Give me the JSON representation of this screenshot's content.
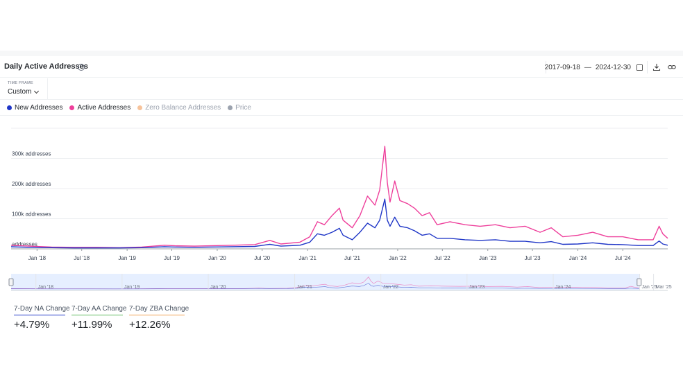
{
  "header": {
    "title": "Daily Active Addresses",
    "date_from": "2017-09-18",
    "date_sep": "—",
    "date_to": "2024-12-30"
  },
  "timeframe": {
    "label": "TIME FRAME",
    "value": "Custom"
  },
  "legend": [
    {
      "label": "New Addresses",
      "color": "#1f36c7",
      "active": true
    },
    {
      "label": "Active Addresses",
      "color": "#ee3f9b",
      "active": true
    },
    {
      "label": "Zero Balance Addresses",
      "color": "#f7c39b",
      "active": false
    },
    {
      "label": "Price",
      "color": "#9ca3af",
      "active": false
    }
  ],
  "chart_data": {
    "type": "line",
    "ylabel_ticks": [
      "addresses",
      "100k addresses",
      "200k addresses",
      "300k addresses"
    ],
    "y_tick_values": [
      0,
      100000,
      200000,
      300000
    ],
    "ylim": [
      0,
      400000
    ],
    "x_ticks": [
      "Jan '18",
      "Jul '18",
      "Jan '19",
      "Jul '19",
      "Jan '20",
      "Jul '20",
      "Jan '21",
      "Jul '21",
      "Jan '22",
      "Jul '22",
      "Jan '23",
      "Jul '23",
      "Jan '24",
      "Jul '24"
    ],
    "x_tick_dates": [
      "2018-01-01",
      "2018-07-01",
      "2019-01-01",
      "2019-07-01",
      "2020-01-01",
      "2020-07-01",
      "2021-01-01",
      "2021-07-01",
      "2022-01-01",
      "2022-07-01",
      "2023-01-01",
      "2023-07-01",
      "2024-01-01",
      "2024-07-01"
    ],
    "xlim": [
      "2017-09-18",
      "2024-12-30"
    ],
    "grid": true,
    "series": [
      {
        "name": "Active Addresses",
        "color": "#ee3f9b",
        "points": [
          [
            "2017-09-18",
            12000
          ],
          [
            "2017-12-01",
            9000
          ],
          [
            "2018-03-01",
            6000
          ],
          [
            "2018-06-01",
            5000
          ],
          [
            "2018-09-01",
            5000
          ],
          [
            "2018-12-01",
            4000
          ],
          [
            "2019-03-01",
            6000
          ],
          [
            "2019-06-01",
            12000
          ],
          [
            "2019-07-15",
            10000
          ],
          [
            "2019-10-01",
            9000
          ],
          [
            "2019-12-01",
            10000
          ],
          [
            "2020-03-01",
            12000
          ],
          [
            "2020-06-01",
            14000
          ],
          [
            "2020-08-01",
            28000
          ],
          [
            "2020-09-15",
            16000
          ],
          [
            "2020-12-01",
            22000
          ],
          [
            "2021-01-10",
            40000
          ],
          [
            "2021-02-10",
            90000
          ],
          [
            "2021-03-10",
            80000
          ],
          [
            "2021-04-10",
            110000
          ],
          [
            "2021-05-10",
            135000
          ],
          [
            "2021-05-25",
            95000
          ],
          [
            "2021-07-01",
            70000
          ],
          [
            "2021-08-01",
            110000
          ],
          [
            "2021-09-01",
            175000
          ],
          [
            "2021-10-01",
            145000
          ],
          [
            "2021-10-20",
            195000
          ],
          [
            "2021-11-10",
            340000
          ],
          [
            "2021-11-20",
            220000
          ],
          [
            "2021-12-01",
            155000
          ],
          [
            "2021-12-20",
            225000
          ],
          [
            "2022-01-10",
            160000
          ],
          [
            "2022-02-10",
            150000
          ],
          [
            "2022-03-10",
            135000
          ],
          [
            "2022-04-10",
            110000
          ],
          [
            "2022-05-10",
            120000
          ],
          [
            "2022-06-10",
            80000
          ],
          [
            "2022-08-01",
            90000
          ],
          [
            "2022-10-01",
            80000
          ],
          [
            "2022-12-01",
            75000
          ],
          [
            "2023-02-01",
            80000
          ],
          [
            "2023-04-01",
            70000
          ],
          [
            "2023-06-01",
            75000
          ],
          [
            "2023-08-01",
            55000
          ],
          [
            "2023-09-15",
            70000
          ],
          [
            "2023-11-01",
            40000
          ],
          [
            "2024-01-01",
            45000
          ],
          [
            "2024-03-01",
            55000
          ],
          [
            "2024-05-01",
            40000
          ],
          [
            "2024-07-01",
            40000
          ],
          [
            "2024-09-01",
            30000
          ],
          [
            "2024-11-01",
            30000
          ],
          [
            "2024-11-25",
            75000
          ],
          [
            "2024-12-10",
            50000
          ],
          [
            "2024-12-30",
            35000
          ]
        ]
      },
      {
        "name": "New Addresses",
        "color": "#1f36c7",
        "points": [
          [
            "2017-09-18",
            7000
          ],
          [
            "2017-12-01",
            5000
          ],
          [
            "2018-03-01",
            4000
          ],
          [
            "2018-06-01",
            3000
          ],
          [
            "2018-09-01",
            3000
          ],
          [
            "2018-12-01",
            3000
          ],
          [
            "2019-03-01",
            4000
          ],
          [
            "2019-06-01",
            7000
          ],
          [
            "2019-07-15",
            6000
          ],
          [
            "2019-10-01",
            5000
          ],
          [
            "2019-12-01",
            6000
          ],
          [
            "2020-03-01",
            7000
          ],
          [
            "2020-06-01",
            8000
          ],
          [
            "2020-08-01",
            15000
          ],
          [
            "2020-09-15",
            9000
          ],
          [
            "2020-12-01",
            12000
          ],
          [
            "2021-01-10",
            22000
          ],
          [
            "2021-02-10",
            50000
          ],
          [
            "2021-03-10",
            45000
          ],
          [
            "2021-04-10",
            55000
          ],
          [
            "2021-05-10",
            68000
          ],
          [
            "2021-05-25",
            45000
          ],
          [
            "2021-07-01",
            30000
          ],
          [
            "2021-08-01",
            55000
          ],
          [
            "2021-09-01",
            85000
          ],
          [
            "2021-10-01",
            70000
          ],
          [
            "2021-10-20",
            95000
          ],
          [
            "2021-11-10",
            165000
          ],
          [
            "2021-11-20",
            95000
          ],
          [
            "2021-12-01",
            75000
          ],
          [
            "2021-12-20",
            105000
          ],
          [
            "2022-01-10",
            75000
          ],
          [
            "2022-02-10",
            70000
          ],
          [
            "2022-03-10",
            60000
          ],
          [
            "2022-04-10",
            45000
          ],
          [
            "2022-05-10",
            50000
          ],
          [
            "2022-06-10",
            35000
          ],
          [
            "2022-08-01",
            35000
          ],
          [
            "2022-10-01",
            30000
          ],
          [
            "2022-12-01",
            28000
          ],
          [
            "2023-02-01",
            30000
          ],
          [
            "2023-04-01",
            25000
          ],
          [
            "2023-06-01",
            25000
          ],
          [
            "2023-08-01",
            20000
          ],
          [
            "2023-09-15",
            24000
          ],
          [
            "2023-11-01",
            15000
          ],
          [
            "2024-01-01",
            16000
          ],
          [
            "2024-03-01",
            20000
          ],
          [
            "2024-05-01",
            15000
          ],
          [
            "2024-07-01",
            14000
          ],
          [
            "2024-09-01",
            11000
          ],
          [
            "2024-11-01",
            11000
          ],
          [
            "2024-11-25",
            26000
          ],
          [
            "2024-12-10",
            16000
          ],
          [
            "2024-12-30",
            12000
          ]
        ]
      }
    ]
  },
  "navigator": {
    "labels": [
      "Jan '18",
      "Jan '19",
      "Jan '20",
      "Jan '21",
      "Jan '22",
      "Jan '23",
      "Jan '24",
      "Jan '25",
      "Mar '25"
    ]
  },
  "stats": [
    {
      "label": "7-Day NA Change",
      "value": "+4.79%",
      "color": "#1f36c7"
    },
    {
      "label": "7-Day AA Change",
      "value": "+11.99%",
      "color": "#5cb85c"
    },
    {
      "label": "7-Day ZBA Change",
      "value": "+12.26%",
      "color": "#f0a050"
    }
  ]
}
